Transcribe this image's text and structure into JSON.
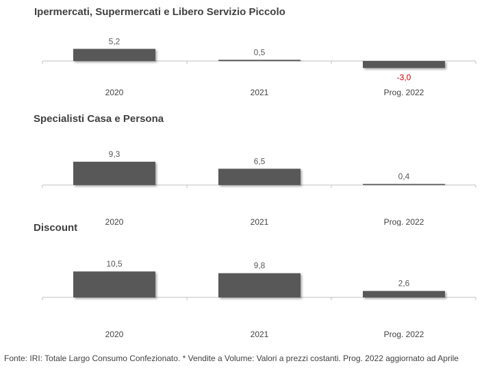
{
  "chart_data": [
    {
      "type": "bar",
      "title": "Ipermercati, Supermercati e Libero Servizio Piccolo",
      "categories": [
        "2020",
        "2021",
        "Prog. 2022"
      ],
      "values": [
        5.2,
        0.5,
        -3.0
      ],
      "value_labels": [
        "5,2",
        "0,5",
        "-3,0"
      ]
    },
    {
      "type": "bar",
      "title": "Specialisti Casa e Persona",
      "categories": [
        "2020",
        "2021",
        "Prog. 2022"
      ],
      "values": [
        9.3,
        6.5,
        0.4
      ],
      "value_labels": [
        "9,3",
        "6,5",
        "0,4"
      ]
    },
    {
      "type": "bar",
      "title": "Discount",
      "categories": [
        "2020",
        "2021",
        "Prog. 2022"
      ],
      "values": [
        10.5,
        9.8,
        2.6
      ],
      "value_labels": [
        "10,5",
        "9,8",
        "2,6"
      ]
    }
  ],
  "colors": {
    "bar": "#595959",
    "axis": "#bfbfbf",
    "negative_label": "#c00000",
    "label": "#595959"
  },
  "footer": "Fonte: IRI: Totale Largo Consumo Confezionato. * Vendite a Volume: Valori a prezzi costanti.  Prog. 2022 aggiornato ad Aprile"
}
